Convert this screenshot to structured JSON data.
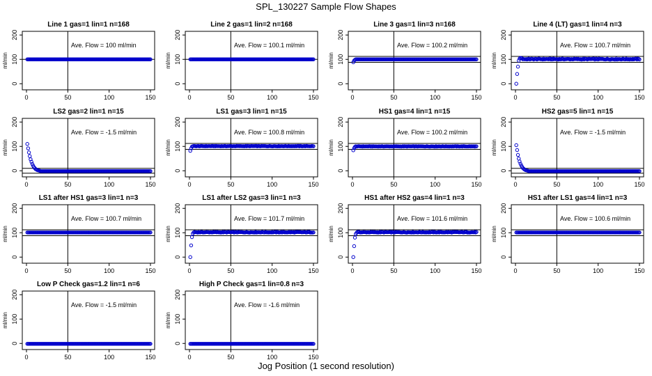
{
  "figure": {
    "title": "SPL_130227  Sample Flow Shapes",
    "xlabel": "Jog Position (1 second resolution)"
  },
  "colors": {
    "points": "#0000cc",
    "axis": "#000000"
  },
  "chart_data": [
    {
      "type": "scatter",
      "title": "Line 1 gas=1 lin=1 n=168",
      "ylabel": "ml/min",
      "annotation": "Ave. Flow =  100  ml/min",
      "xlim": [
        0,
        150
      ],
      "ylim": [
        -25,
        215
      ],
      "xticks": [
        0,
        50,
        100,
        150
      ],
      "yticks": [
        0,
        100,
        200
      ],
      "hlines": [
        100
      ],
      "vline": 50,
      "series": [
        {
          "start_values": [],
          "plateau": 100,
          "plateau_noise": 0,
          "x_end": 150
        }
      ]
    },
    {
      "type": "scatter",
      "title": "Line 2 gas=1 lin=2 n=168",
      "ylabel": "ml/min",
      "annotation": "Ave. Flow =  100.1  ml/min",
      "xlim": [
        0,
        150
      ],
      "ylim": [
        -25,
        215
      ],
      "xticks": [
        0,
        50,
        100,
        150
      ],
      "yticks": [
        0,
        100,
        200
      ],
      "hlines": [
        100
      ],
      "vline": 50,
      "series": [
        {
          "start_values": [],
          "plateau": 100,
          "plateau_noise": 0,
          "x_end": 150
        }
      ]
    },
    {
      "type": "scatter",
      "title": "Line 3 gas=1 lin=3 n=168",
      "ylabel": "ml/min",
      "annotation": "Ave. Flow =  100.2  ml/min",
      "xlim": [
        0,
        150
      ],
      "ylim": [
        -25,
        215
      ],
      "xticks": [
        0,
        50,
        100,
        150
      ],
      "yticks": [
        0,
        100,
        200
      ],
      "hlines": [
        88,
        112
      ],
      "vline": 50,
      "series": [
        {
          "start_values": [
            88,
            95,
            98
          ],
          "plateau": 100,
          "plateau_noise": 0,
          "x_end": 150
        }
      ]
    },
    {
      "type": "scatter",
      "title": "Line 4 (LT) gas=1 lin=4 n=3",
      "ylabel": "ml/min",
      "annotation": "Ave. Flow =  100.7  ml/min",
      "xlim": [
        0,
        150
      ],
      "ylim": [
        -25,
        215
      ],
      "xticks": [
        0,
        50,
        100,
        150
      ],
      "yticks": [
        0,
        100,
        200
      ],
      "hlines": [
        88,
        112
      ],
      "vline": 50,
      "series": [
        {
          "start_values": [
            0,
            40,
            70,
            95,
            103,
            106,
            105,
            104
          ],
          "plateau": 101,
          "plateau_noise": 2,
          "x_end": 150
        }
      ]
    },
    {
      "type": "scatter",
      "title": "LS2 gas=2 lin=1 n=15",
      "ylabel": "ml/min",
      "annotation": "Ave. Flow =  -1.5  ml/min",
      "xlim": [
        0,
        150
      ],
      "ylim": [
        -25,
        215
      ],
      "xticks": [
        0,
        50,
        100,
        150
      ],
      "yticks": [
        0,
        100,
        200
      ],
      "hlines": [
        10,
        -10
      ],
      "vline": 50,
      "series": [
        {
          "start_values": [
            110,
            92,
            75,
            60,
            47,
            37,
            28,
            21,
            15,
            11,
            7,
            5,
            3,
            2,
            1,
            0
          ],
          "plateau": -1.5,
          "plateau_noise": 0,
          "x_end": 150
        }
      ]
    },
    {
      "type": "scatter",
      "title": "LS1 gas=3 lin=1 n=15",
      "ylabel": "ml/min",
      "annotation": "Ave. Flow =  100.8  ml/min",
      "xlim": [
        0,
        150
      ],
      "ylim": [
        -25,
        215
      ],
      "xticks": [
        0,
        50,
        100,
        150
      ],
      "yticks": [
        0,
        100,
        200
      ],
      "hlines": [
        88,
        112
      ],
      "vline": 50,
      "series": [
        {
          "start_values": [
            82,
            92,
            99
          ],
          "plateau": 101,
          "plateau_noise": 1,
          "x_end": 150
        }
      ]
    },
    {
      "type": "scatter",
      "title": "HS1 gas=4 lin=1 n=15",
      "ylabel": "ml/min",
      "annotation": "Ave. Flow =  100.2  ml/min",
      "xlim": [
        0,
        150
      ],
      "ylim": [
        -25,
        215
      ],
      "xticks": [
        0,
        50,
        100,
        150
      ],
      "yticks": [
        0,
        100,
        200
      ],
      "hlines": [
        88,
        112
      ],
      "vline": 50,
      "series": [
        {
          "start_values": [
            84,
            93,
            98
          ],
          "plateau": 100,
          "plateau_noise": 1,
          "x_end": 150
        }
      ]
    },
    {
      "type": "scatter",
      "title": "HS2 gas=5 lin=1 n=15",
      "ylabel": "ml/min",
      "annotation": "Ave. Flow =  -1.5  ml/min",
      "xlim": [
        0,
        150
      ],
      "ylim": [
        -25,
        215
      ],
      "xticks": [
        0,
        50,
        100,
        150
      ],
      "yticks": [
        0,
        100,
        200
      ],
      "hlines": [
        10,
        -10
      ],
      "vline": 50,
      "series": [
        {
          "start_values": [
            105,
            85,
            65,
            50,
            38,
            29,
            22,
            16,
            11,
            8,
            5,
            3,
            2,
            1,
            0
          ],
          "plateau": -1.5,
          "plateau_noise": 0,
          "x_end": 150
        }
      ]
    },
    {
      "type": "scatter",
      "title": "LS1 after HS1 gas=3 lin=1 n=3",
      "ylabel": "ml/min",
      "annotation": "Ave. Flow =  100.7  ml/min",
      "xlim": [
        0,
        150
      ],
      "ylim": [
        -25,
        215
      ],
      "xticks": [
        0,
        50,
        100,
        150
      ],
      "yticks": [
        0,
        100,
        200
      ],
      "hlines": [
        88,
        112
      ],
      "vline": 50,
      "series": [
        {
          "start_values": [],
          "plateau": 101,
          "plateau_noise": 0,
          "x_end": 150
        }
      ]
    },
    {
      "type": "scatter",
      "title": "LS1 after LS2 gas=3 lin=1 n=3",
      "ylabel": "ml/min",
      "annotation": "Ave. Flow =  101.7  ml/min",
      "xlim": [
        0,
        150
      ],
      "ylim": [
        -25,
        215
      ],
      "xticks": [
        0,
        50,
        100,
        150
      ],
      "yticks": [
        0,
        100,
        200
      ],
      "hlines": [
        88,
        112
      ],
      "vline": 50,
      "series": [
        {
          "start_values": [
            0,
            48,
            82,
            96,
            101,
            103
          ],
          "plateau": 102,
          "plateau_noise": 1.5,
          "x_end": 150
        }
      ]
    },
    {
      "type": "scatter",
      "title": "HS1 after HS2 gas=4 lin=1 n=3",
      "ylabel": "ml/min",
      "annotation": "Ave. Flow =  101.6  ml/min",
      "xlim": [
        0,
        150
      ],
      "ylim": [
        -25,
        215
      ],
      "xticks": [
        0,
        50,
        100,
        150
      ],
      "yticks": [
        0,
        100,
        200
      ],
      "hlines": [
        88,
        112
      ],
      "vline": 50,
      "series": [
        {
          "start_values": [
            0,
            45,
            80,
            95,
            100,
            103
          ],
          "plateau": 102,
          "plateau_noise": 1.5,
          "x_end": 150
        }
      ]
    },
    {
      "type": "scatter",
      "title": "HS1 after LS1 gas=4 lin=1 n=3",
      "ylabel": "ml/min",
      "annotation": "Ave. Flow =  100.6  ml/min",
      "xlim": [
        0,
        150
      ],
      "ylim": [
        -25,
        215
      ],
      "xticks": [
        0,
        50,
        100,
        150
      ],
      "yticks": [
        0,
        100,
        200
      ],
      "hlines": [
        88,
        112
      ],
      "vline": 50,
      "series": [
        {
          "start_values": [],
          "plateau": 101,
          "plateau_noise": 0,
          "x_end": 150
        }
      ]
    },
    {
      "type": "scatter",
      "title": "Low P Check gas=1.2 lin=1 n=6",
      "ylabel": "ml/min",
      "annotation": "Ave. Flow =  -1.5  ml/min",
      "xlim": [
        0,
        150
      ],
      "ylim": [
        -25,
        215
      ],
      "xticks": [
        0,
        50,
        100,
        150
      ],
      "yticks": [
        0,
        100,
        200
      ],
      "hlines": [],
      "vline": 50,
      "series": [
        {
          "start_values": [],
          "plateau": -1.5,
          "plateau_noise": 0,
          "x_end": 150
        }
      ]
    },
    {
      "type": "scatter",
      "title": "High P Check gas=1 lin=0.8 n=3",
      "ylabel": "ml/min",
      "annotation": "Ave. Flow =  -1.6  ml/min",
      "xlim": [
        0,
        150
      ],
      "ylim": [
        -25,
        215
      ],
      "xticks": [
        0,
        50,
        100,
        150
      ],
      "yticks": [
        0,
        100,
        200
      ],
      "hlines": [],
      "vline": 50,
      "series": [
        {
          "start_values": [],
          "plateau": -1.6,
          "plateau_noise": 0,
          "x_end": 150
        }
      ]
    }
  ]
}
